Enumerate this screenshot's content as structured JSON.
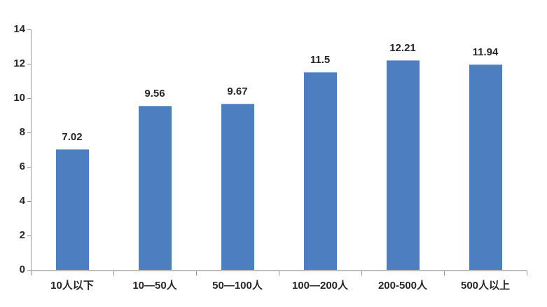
{
  "chart_data": {
    "type": "bar",
    "title": "",
    "xlabel": "",
    "ylabel": "",
    "categories": [
      "10人以下",
      "10—50人",
      "50—100人",
      "100—200人",
      "200-500人",
      "500人以上"
    ],
    "values": [
      7.02,
      9.56,
      9.67,
      11.5,
      12.21,
      11.94
    ],
    "data_labels": [
      "7.02",
      "9.56",
      "9.67",
      "11.5",
      "12.21",
      "11.94"
    ],
    "y_ticks": [
      "0",
      "2",
      "4",
      "6",
      "8",
      "10",
      "12",
      "14"
    ],
    "ylim": [
      0,
      14
    ],
    "grid": false,
    "legend": false,
    "colors": {
      "bar_fill": "#4d7ebf",
      "bar_top_edge": "#7fa5d6",
      "y_axis_line": "#9d9d9d",
      "x_axis_line": "#bdbdbd",
      "tick_mark": "#8e8e8e",
      "label_text": "#262626"
    }
  }
}
